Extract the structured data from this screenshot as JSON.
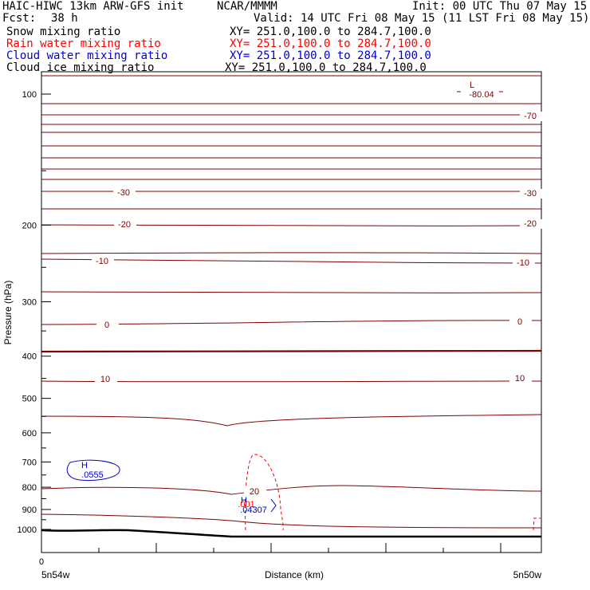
{
  "header": {
    "title": "HAIC-HIWC 13km ARW-GFS init",
    "center": "NCAR/MMMM",
    "init": "Init: 00 UTC Thu 07 May 15",
    "fcst_label": "Fcst:",
    "fcst_value": "38 h",
    "valid": "Valid: 14 UTC Fri 08 May 15 (11 LST Fri 08 May 15)"
  },
  "fields": [
    {
      "name": "Snow mixing ratio",
      "xy": "XY= 251.0,100.0 to 284.7,100.0",
      "color": "#000000"
    },
    {
      "name": "Rain water mixing ratio",
      "xy": "XY= 251.0,100.0 to 284.7,100.0",
      "color": "#ff0000"
    },
    {
      "name": "Cloud water mixing ratio",
      "xy": "XY= 251.0,100.0 to 284.7,100.0",
      "color": "#0000cc"
    },
    {
      "name": "Cloud ice mixing ratio",
      "xy": "XY= 251.0,100.0 to 284.7,100.0",
      "color": "#000000"
    }
  ],
  "colors": {
    "temperature": "#800000",
    "rain": "#ff0000",
    "cloud_water": "#0000cc",
    "ground": "#000000"
  },
  "chart_data": {
    "type": "line",
    "xlabel": "Distance (km)",
    "ylabel": "Pressure (hPa)",
    "x_ticks": [
      "0"
    ],
    "x_endpoints": [
      "5n54w",
      "5n50w"
    ],
    "y_ticks": [
      100,
      200,
      300,
      400,
      500,
      600,
      700,
      800,
      900,
      1000
    ],
    "temperature_contour_labels": [
      "-70",
      "-30",
      "-30",
      "-20",
      "-20",
      "-10",
      "-10",
      "0",
      "0",
      "10",
      "10",
      "20"
    ],
    "extrema": [
      {
        "type": "L",
        "value": "-80.04",
        "field": "temperature"
      },
      {
        "type": "H",
        "value": ".0555",
        "field": "cloud_water"
      },
      {
        "type": "H",
        "value": ".04307",
        "field": "cloud_water"
      },
      {
        "type": "",
        "value": ".001",
        "field": "rain"
      }
    ]
  }
}
